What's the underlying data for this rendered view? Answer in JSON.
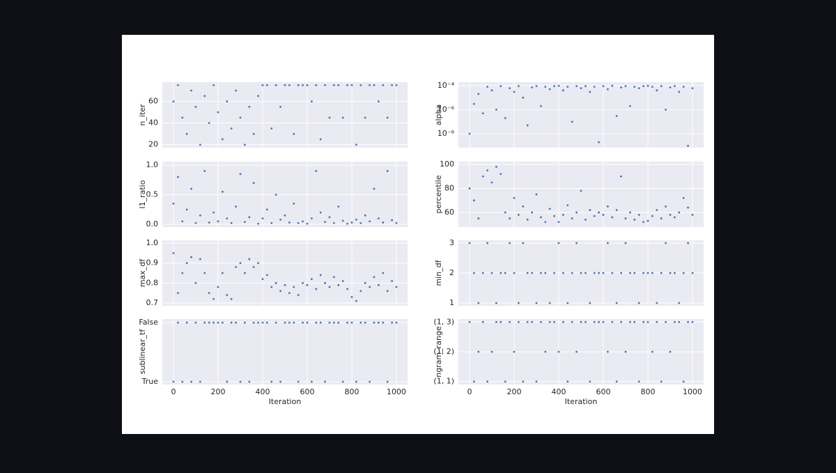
{
  "chart_data": [
    {
      "type": "scatter",
      "ylabel": "n_iter",
      "color": "#4c72b0",
      "grid": true,
      "xlim": [
        -50,
        1050
      ],
      "xticks": [
        0,
        200,
        400,
        600,
        800,
        1000
      ],
      "ylim": [
        17.25,
        77.75
      ],
      "yticks": [
        20,
        40,
        60
      ],
      "x": [
        0,
        20,
        40,
        60,
        80,
        100,
        120,
        140,
        160,
        180,
        200,
        220,
        240,
        260,
        280,
        300,
        320,
        340,
        360,
        380,
        400,
        420,
        440,
        460,
        480,
        500,
        520,
        540,
        560,
        580,
        600,
        620,
        640,
        660,
        680,
        700,
        720,
        740,
        760,
        780,
        800,
        820,
        840,
        860,
        880,
        900,
        920,
        940,
        960,
        980,
        1000
      ],
      "values": [
        60,
        75,
        45,
        30,
        70,
        55,
        20,
        65,
        40,
        75,
        50,
        25,
        60,
        35,
        70,
        45,
        20,
        55,
        30,
        65,
        75,
        75,
        35,
        75,
        55,
        75,
        75,
        30,
        75,
        75,
        75,
        60,
        75,
        25,
        75,
        45,
        75,
        75,
        45,
        75,
        75,
        20,
        75,
        45,
        75,
        75,
        60,
        75,
        45,
        75,
        75
      ]
    },
    {
      "type": "scatter",
      "ylabel": "alpha",
      "color": "#4c72b0",
      "grid": true,
      "log": true,
      "xlim": [
        -50,
        1050
      ],
      "xticks": [
        0,
        200,
        400,
        600,
        800,
        1000
      ],
      "ylim": [
        7e-10,
        0.00019
      ],
      "yticks": [
        {
          "value": 1e-08,
          "label": "10⁻⁸"
        },
        {
          "value": 1e-06,
          "label": "10⁻⁶"
        },
        {
          "value": 0.0001,
          "label": "10⁻⁴"
        }
      ],
      "x": [
        0,
        20,
        40,
        60,
        80,
        100,
        120,
        140,
        160,
        180,
        200,
        220,
        240,
        260,
        280,
        300,
        320,
        340,
        360,
        380,
        400,
        420,
        440,
        460,
        480,
        500,
        520,
        540,
        560,
        580,
        600,
        620,
        640,
        660,
        680,
        700,
        720,
        740,
        760,
        780,
        800,
        820,
        840,
        860,
        880,
        900,
        920,
        940,
        960,
        980,
        1000
      ],
      "values": [
        1e-08,
        3e-06,
        2e-05,
        5e-07,
        8e-05,
        4e-05,
        1e-06,
        9e-05,
        2e-07,
        6e-05,
        3e-05,
        9e-05,
        1e-05,
        5e-08,
        7e-05,
        9e-05,
        2e-06,
        8e-05,
        5e-05,
        9e-05,
        9.5e-05,
        4e-05,
        8e-05,
        1e-07,
        9e-05,
        6e-05,
        9e-05,
        3e-05,
        8e-05,
        2e-09,
        9e-05,
        5e-05,
        9.5e-05,
        3e-07,
        7e-05,
        9e-05,
        2e-06,
        8e-05,
        6e-05,
        9e-05,
        9.5e-05,
        8e-05,
        4e-05,
        9e-05,
        1e-06,
        7e-05,
        9e-05,
        3e-05,
        8e-05,
        1e-09,
        6e-05
      ]
    },
    {
      "type": "scatter",
      "ylabel": "l1_ratio",
      "color": "#4c72b0",
      "grid": true,
      "xlim": [
        -50,
        1050
      ],
      "xticks": [
        0,
        200,
        400,
        600,
        800,
        1000
      ],
      "ylim": [
        -0.047,
        1.06
      ],
      "yticks": [
        {
          "value": 0,
          "label": "0.0"
        },
        {
          "value": 0.5,
          "label": "0.5"
        },
        {
          "value": 1,
          "label": "1.0"
        }
      ],
      "x": [
        0,
        20,
        40,
        60,
        80,
        100,
        120,
        140,
        160,
        180,
        200,
        220,
        240,
        260,
        280,
        300,
        320,
        340,
        360,
        380,
        400,
        420,
        440,
        460,
        480,
        500,
        520,
        540,
        560,
        580,
        600,
        620,
        640,
        660,
        680,
        700,
        720,
        740,
        760,
        780,
        800,
        820,
        840,
        860,
        880,
        900,
        920,
        940,
        960,
        980,
        1000
      ],
      "values": [
        0.35,
        0.8,
        0.05,
        0.25,
        0.6,
        0.02,
        0.15,
        0.9,
        0.03,
        0.2,
        0.05,
        0.55,
        0.1,
        0.02,
        0.3,
        0.85,
        0.04,
        0.12,
        0.7,
        0.01,
        0.1,
        0.25,
        0.02,
        0.5,
        0.08,
        0.15,
        0.03,
        0.35,
        0.02,
        0.05,
        0.01,
        0.1,
        0.9,
        0.2,
        0.04,
        0.12,
        0.02,
        0.3,
        0.06,
        0.01,
        0.03,
        0.08,
        0.02,
        0.15,
        0.05,
        0.6,
        0.1,
        0.03,
        0.9,
        0.07,
        0.02
      ]
    },
    {
      "type": "scatter",
      "ylabel": "percentile",
      "color": "#4c72b0",
      "grid": true,
      "xlim": [
        -50,
        1050
      ],
      "xticks": [
        0,
        200,
        400,
        600,
        800,
        1000
      ],
      "ylim": [
        47.8,
        102.3
      ],
      "yticks": [
        60,
        80,
        100
      ],
      "x": [
        0,
        20,
        40,
        60,
        80,
        100,
        120,
        140,
        160,
        180,
        200,
        220,
        240,
        260,
        280,
        300,
        320,
        340,
        360,
        380,
        400,
        420,
        440,
        460,
        480,
        500,
        520,
        540,
        560,
        580,
        600,
        620,
        640,
        660,
        680,
        700,
        720,
        740,
        760,
        780,
        800,
        820,
        840,
        860,
        880,
        900,
        920,
        940,
        960,
        980,
        1000
      ],
      "values": [
        80,
        70,
        55,
        90,
        95,
        85,
        98,
        92,
        60,
        55,
        72,
        58,
        65,
        54,
        60,
        75,
        56,
        52,
        63,
        57,
        52,
        58,
        66,
        55,
        60,
        78,
        54,
        62,
        57,
        60,
        58,
        65,
        56,
        62,
        90,
        55,
        60,
        54,
        58,
        52,
        53,
        57,
        62,
        55,
        65,
        58,
        56,
        60,
        72,
        64,
        58
      ]
    },
    {
      "type": "scatter",
      "ylabel": "max_df",
      "color": "#4c72b0",
      "grid": true,
      "xlim": [
        -50,
        1050
      ],
      "xticks": [
        0,
        200,
        400,
        600,
        800,
        1000
      ],
      "ylim": [
        0.686,
        1.014
      ],
      "yticks": [
        {
          "value": 0.7,
          "label": "0.7"
        },
        {
          "value": 0.8,
          "label": "0.8"
        },
        {
          "value": 0.9,
          "label": "0.9"
        },
        {
          "value": 1,
          "label": "1.0"
        }
      ],
      "x": [
        0,
        20,
        40,
        60,
        80,
        100,
        120,
        140,
        160,
        180,
        200,
        220,
        240,
        260,
        280,
        300,
        320,
        340,
        360,
        380,
        400,
        420,
        440,
        460,
        480,
        500,
        520,
        540,
        560,
        580,
        600,
        620,
        640,
        660,
        680,
        700,
        720,
        740,
        760,
        780,
        800,
        820,
        840,
        860,
        880,
        900,
        920,
        940,
        960,
        980,
        1000
      ],
      "values": [
        0.95,
        0.75,
        0.85,
        0.9,
        0.93,
        0.8,
        0.92,
        0.85,
        0.75,
        0.72,
        0.78,
        0.85,
        0.74,
        0.72,
        0.88,
        0.9,
        0.85,
        0.92,
        0.88,
        0.9,
        0.82,
        0.84,
        0.78,
        0.8,
        0.76,
        0.79,
        0.75,
        0.78,
        0.74,
        0.8,
        0.79,
        0.82,
        0.77,
        0.84,
        0.8,
        0.78,
        0.83,
        0.79,
        0.81,
        0.77,
        0.73,
        0.71,
        0.76,
        0.8,
        0.78,
        0.83,
        0.79,
        0.85,
        0.76,
        0.81,
        0.78
      ]
    },
    {
      "type": "scatter",
      "ylabel": "min_df",
      "color": "#4c72b0",
      "grid": true,
      "xlim": [
        -50,
        1050
      ],
      "xticks": [
        0,
        200,
        400,
        600,
        800,
        1000
      ],
      "ylim": [
        0.907,
        3.09
      ],
      "yticks": [
        1,
        2,
        3
      ],
      "x": [
        0,
        20,
        40,
        60,
        80,
        100,
        120,
        140,
        160,
        180,
        200,
        220,
        240,
        260,
        280,
        300,
        320,
        340,
        360,
        380,
        400,
        420,
        440,
        460,
        480,
        500,
        520,
        540,
        560,
        580,
        600,
        620,
        640,
        660,
        680,
        700,
        720,
        740,
        760,
        780,
        800,
        820,
        840,
        860,
        880,
        900,
        920,
        940,
        960,
        980,
        1000
      ],
      "values": [
        3,
        2,
        1,
        2,
        3,
        2,
        1,
        2,
        2,
        3,
        2,
        1,
        3,
        2,
        2,
        1,
        2,
        2,
        1,
        2,
        3,
        2,
        1,
        2,
        3,
        2,
        2,
        1,
        2,
        2,
        2,
        3,
        2,
        1,
        2,
        3,
        2,
        2,
        1,
        2,
        2,
        2,
        1,
        2,
        3,
        2,
        2,
        1,
        2,
        3,
        2
      ]
    },
    {
      "type": "scatter",
      "ylabel": "sublinear_tf",
      "xlabel": "Iteration",
      "color": "#4c72b0",
      "grid": true,
      "xlim": [
        -50,
        1050
      ],
      "xticks": [
        0,
        200,
        400,
        600,
        800,
        1000
      ],
      "ylim": [
        -0.047,
        1.06
      ],
      "yticks": [
        {
          "value": 0,
          "label": "True"
        },
        {
          "value": 1,
          "label": "False"
        }
      ],
      "x": [
        0,
        20,
        40,
        60,
        80,
        100,
        120,
        140,
        160,
        180,
        200,
        220,
        240,
        260,
        280,
        300,
        320,
        340,
        360,
        380,
        400,
        420,
        440,
        460,
        480,
        500,
        520,
        540,
        560,
        580,
        600,
        620,
        640,
        660,
        680,
        700,
        720,
        740,
        760,
        780,
        800,
        820,
        840,
        860,
        880,
        900,
        920,
        940,
        960,
        980,
        1000
      ],
      "values": [
        0,
        1,
        0,
        1,
        0,
        1,
        0,
        1,
        1,
        1,
        1,
        1,
        0,
        1,
        1,
        0,
        1,
        0,
        1,
        1,
        1,
        1,
        0,
        1,
        0,
        1,
        1,
        1,
        0,
        1,
        1,
        0,
        1,
        1,
        0,
        1,
        1,
        1,
        0,
        1,
        1,
        0,
        1,
        1,
        0,
        1,
        1,
        1,
        0,
        1,
        1
      ]
    },
    {
      "type": "scatter",
      "ylabel": "ngram_range",
      "xlabel": "Iteration",
      "color": "#4c72b0",
      "grid": true,
      "xlim": [
        -50,
        1050
      ],
      "xticks": [
        0,
        200,
        400,
        600,
        800,
        1000
      ],
      "ylim": [
        -0.1,
        2.1
      ],
      "yticks": [
        {
          "value": 0,
          "label": "(1, 1)"
        },
        {
          "value": 1,
          "label": "(1, 2)"
        },
        {
          "value": 2,
          "label": "(1, 3)"
        }
      ],
      "x": [
        0,
        20,
        40,
        60,
        80,
        100,
        120,
        140,
        160,
        180,
        200,
        220,
        240,
        260,
        280,
        300,
        320,
        340,
        360,
        380,
        400,
        420,
        440,
        460,
        480,
        500,
        520,
        540,
        560,
        580,
        600,
        620,
        640,
        660,
        680,
        700,
        720,
        740,
        760,
        780,
        800,
        820,
        840,
        860,
        880,
        900,
        920,
        940,
        960,
        980,
        1000
      ],
      "values": [
        2,
        0,
        1,
        2,
        0,
        1,
        2,
        2,
        0,
        2,
        1,
        2,
        0,
        2,
        2,
        0,
        2,
        1,
        2,
        2,
        1,
        2,
        0,
        2,
        1,
        2,
        2,
        0,
        2,
        2,
        2,
        1,
        2,
        0,
        2,
        1,
        2,
        2,
        0,
        2,
        2,
        1,
        2,
        0,
        2,
        1,
        2,
        2,
        0,
        2,
        2
      ]
    }
  ]
}
